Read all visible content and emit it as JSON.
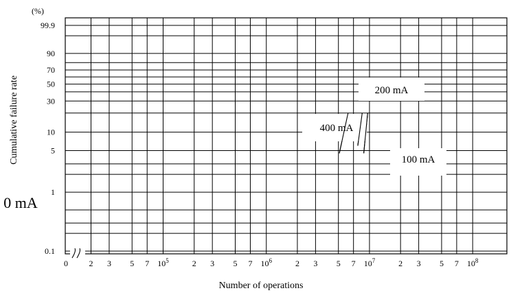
{
  "chart_data": {
    "type": "line",
    "title": "",
    "xlabel": "Number of operations",
    "ylabel": "Cumulative failure rate",
    "y_unit": "(%)",
    "x_scale": "log",
    "y_scale": "weibull-probability",
    "grid": true,
    "x_ticks": [
      {
        "value": 0,
        "label": "0"
      },
      {
        "value": 20000,
        "label": "2"
      },
      {
        "value": 30000,
        "label": "3"
      },
      {
        "value": 50000,
        "label": "5"
      },
      {
        "value": 70000,
        "label": "7"
      },
      {
        "value": 100000,
        "label": "10",
        "exp": "5"
      },
      {
        "value": 200000,
        "label": "2"
      },
      {
        "value": 300000,
        "label": "3"
      },
      {
        "value": 500000,
        "label": "5"
      },
      {
        "value": 700000,
        "label": "7"
      },
      {
        "value": 1000000,
        "label": "10",
        "exp": "6"
      },
      {
        "value": 2000000,
        "label": "2"
      },
      {
        "value": 3000000,
        "label": "3"
      },
      {
        "value": 5000000,
        "label": "5"
      },
      {
        "value": 7000000,
        "label": "7"
      },
      {
        "value": 10000000,
        "label": "10",
        "exp": "7"
      },
      {
        "value": 20000000,
        "label": "2"
      },
      {
        "value": 30000000,
        "label": "3"
      },
      {
        "value": 50000000,
        "label": "5"
      },
      {
        "value": 70000000,
        "label": "7"
      },
      {
        "value": 100000000,
        "label": "10",
        "exp": "8"
      }
    ],
    "y_ticks": [
      {
        "value": 99.9,
        "label": "99.9"
      },
      {
        "value": 90,
        "label": "90"
      },
      {
        "value": 70,
        "label": "70"
      },
      {
        "value": 50,
        "label": "50"
      },
      {
        "value": 30,
        "label": "30"
      },
      {
        "value": 10,
        "label": "10"
      },
      {
        "value": 5,
        "label": "5"
      },
      {
        "value": 1,
        "label": "1"
      },
      {
        "value": 0.1,
        "label": "0.1"
      }
    ],
    "series": [
      {
        "name": "200 mA",
        "points": [
          [
            5100000,
            4.5
          ],
          [
            6200000,
            20
          ]
        ]
      },
      {
        "name": "400 mA",
        "points": [
          [
            7700000,
            6
          ],
          [
            8500000,
            20
          ]
        ]
      },
      {
        "name": "100 mA",
        "points": [
          [
            8800000,
            4.5
          ],
          [
            9600000,
            20
          ]
        ]
      }
    ],
    "stray_text": "0 mA"
  }
}
